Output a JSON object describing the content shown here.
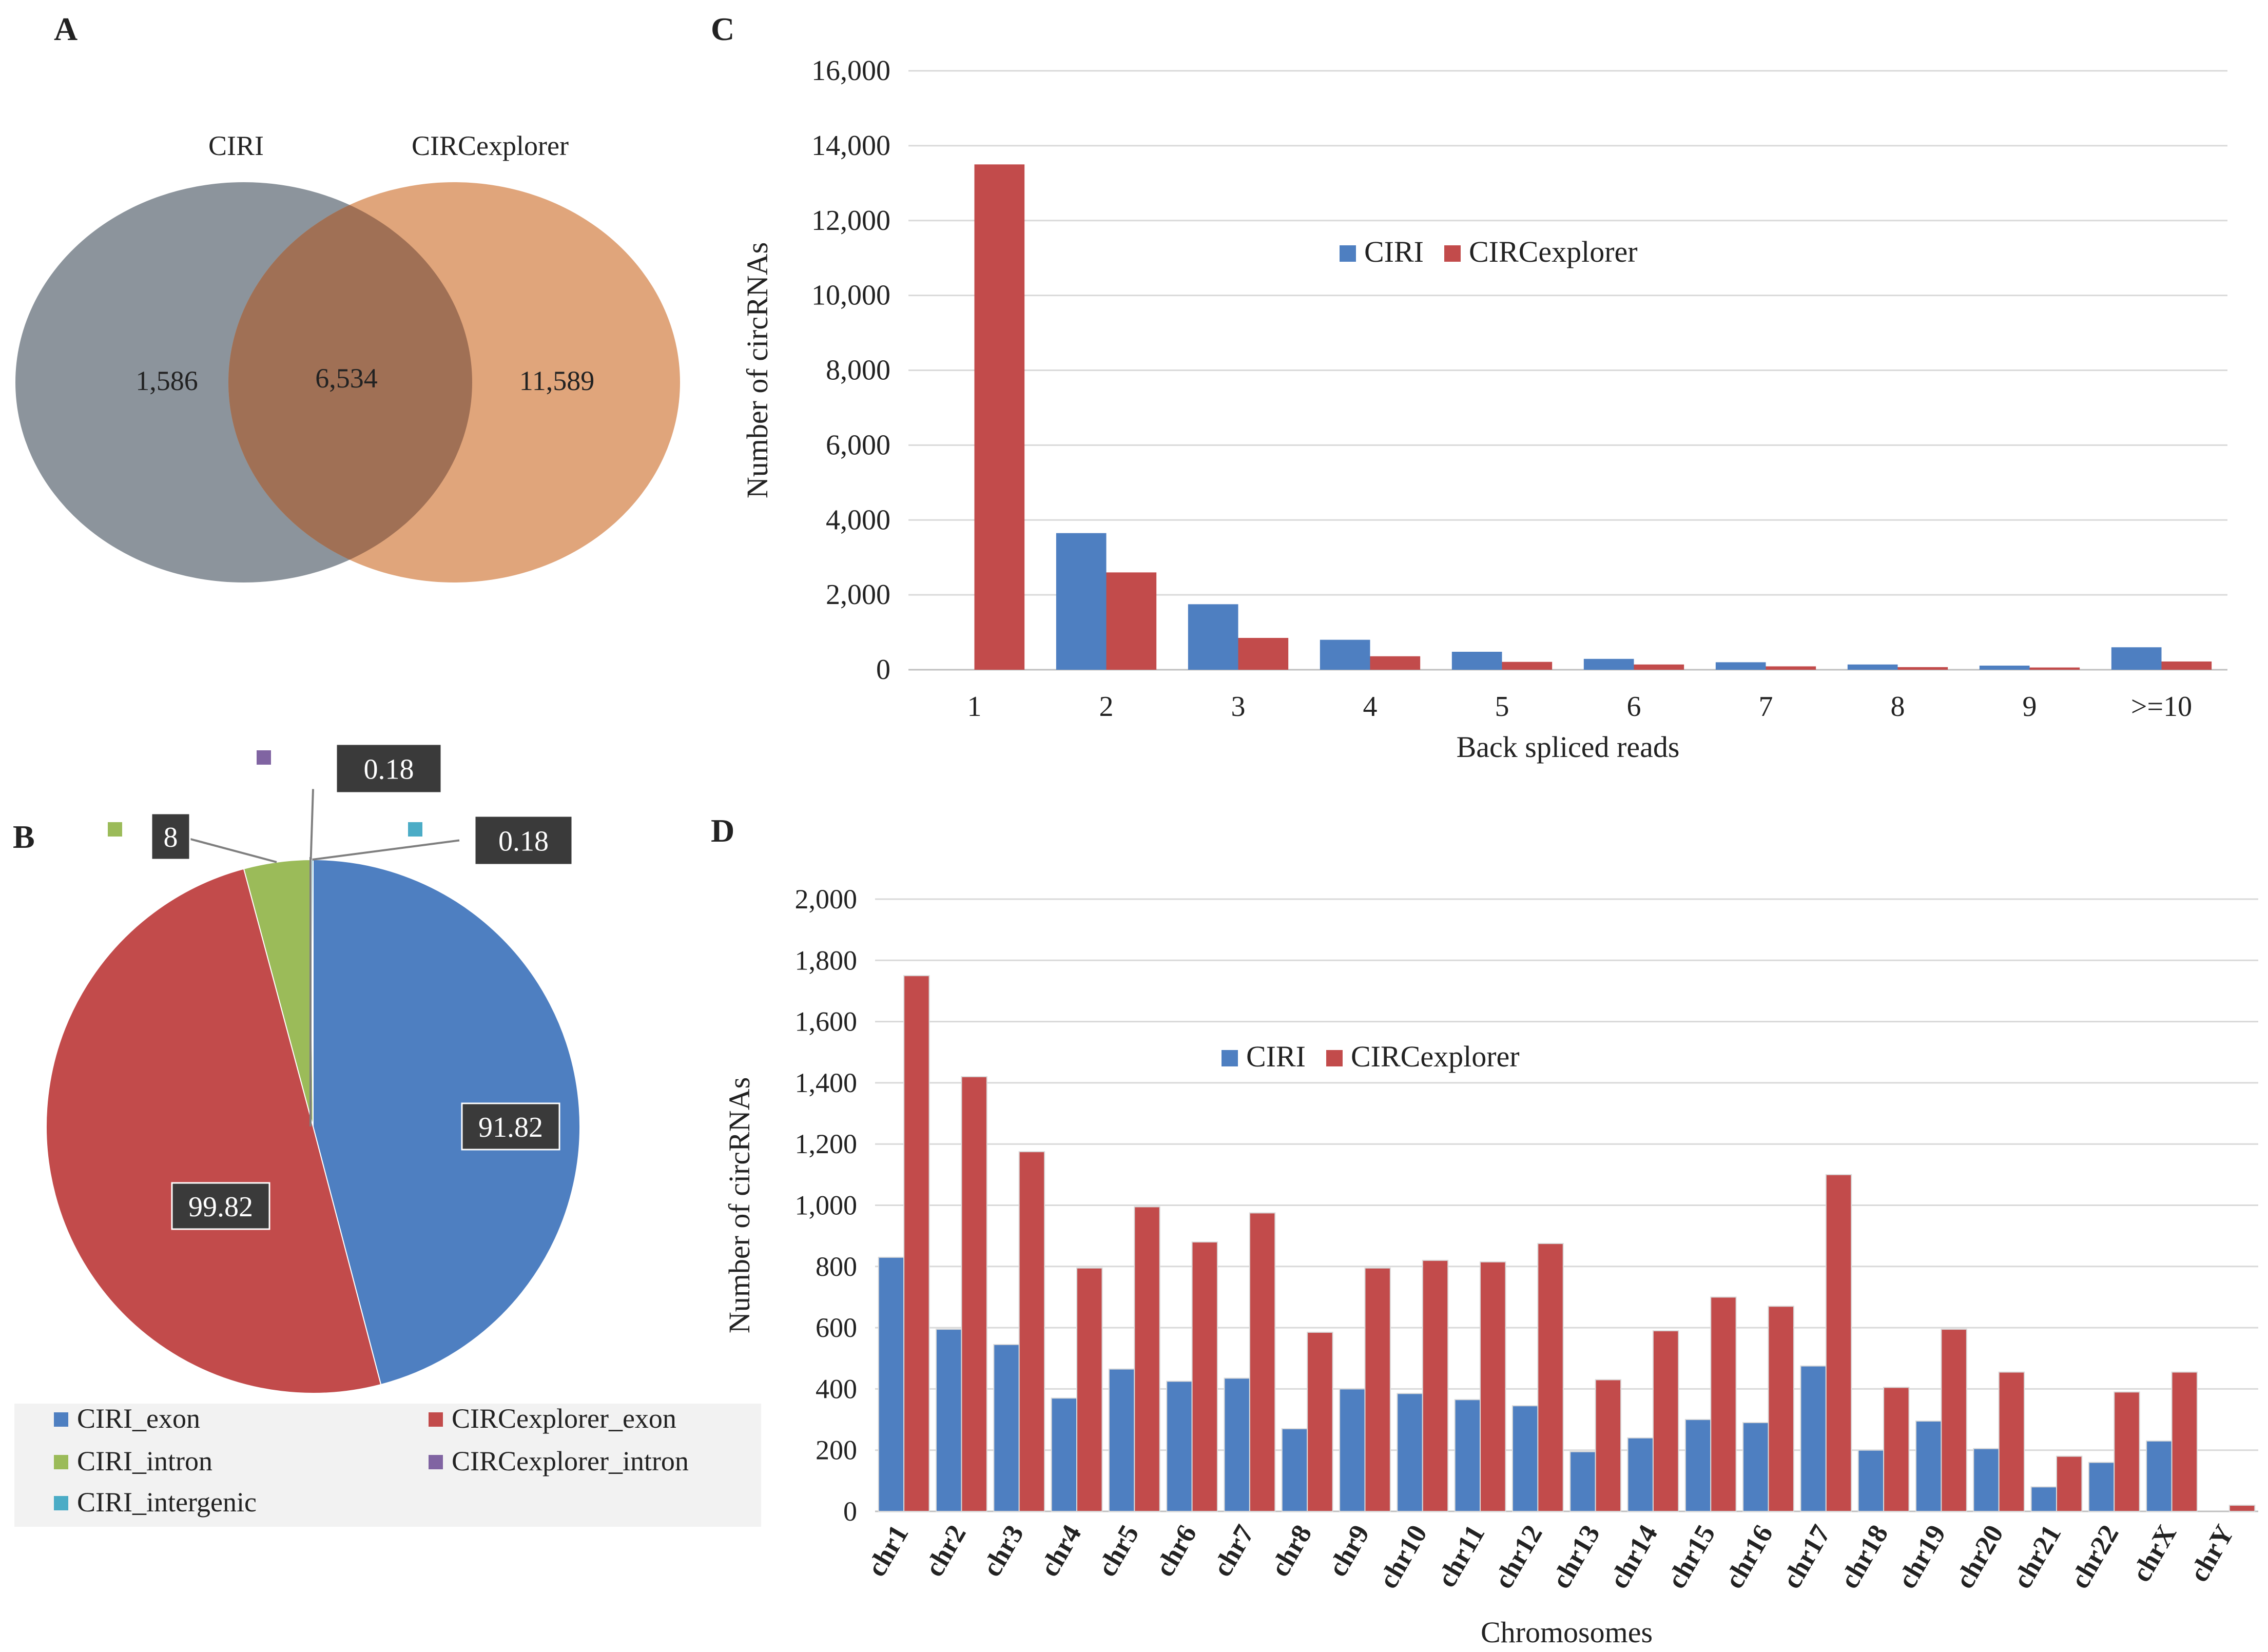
{
  "panels": {
    "a": {
      "letter": "A",
      "set_labels": [
        "CIRI",
        "CIRCexplorer"
      ],
      "values": {
        "left_only": "1,586",
        "both": "6,534",
        "right_only": "11,589"
      },
      "colors": {
        "left": "#8c949c",
        "right": "#e0a57b",
        "overlap": "#a07055"
      }
    },
    "b": {
      "letter": "B"
    },
    "c": {
      "letter": "C"
    },
    "d": {
      "letter": "D"
    }
  },
  "chart_data": [
    {
      "id": "pie",
      "type": "pie",
      "slices": [
        {
          "name": "CIRI_exon",
          "value": 91.82,
          "label": "91.82",
          "color": "#4e7fc1"
        },
        {
          "name": "CIRCexplorer_exon",
          "value": 99.82,
          "label": "99.82",
          "color": "#c24b4b"
        },
        {
          "name": "CIRI_intron",
          "value": 8,
          "label": "8",
          "color": "#9bbb59"
        },
        {
          "name": "CIRCexplorer_intron",
          "value": 0.18,
          "label": "0.18",
          "color": "#8064a2"
        },
        {
          "name": "CIRI_intergenic",
          "value": 0.18,
          "label": "0.18",
          "color": "#4bacc6"
        }
      ],
      "legend": [
        "CIRI_exon",
        "CIRCexplorer_exon",
        "CIRI_intron",
        "CIRCexplorer_intron",
        "CIRI_intergenic"
      ]
    },
    {
      "id": "backspliced",
      "type": "bar",
      "xlabel": "Back spliced reads",
      "ylabel": "Number of circRNAs",
      "ylim": [
        0,
        16000
      ],
      "yticks": [
        "0",
        "2,000",
        "4,000",
        "6,000",
        "8,000",
        "10,000",
        "12,000",
        "14,000",
        "16,000"
      ],
      "categories": [
        "1",
        "2",
        "3",
        "4",
        "5",
        "6",
        "7",
        "8",
        "9",
        ">=10"
      ],
      "series": [
        {
          "name": "CIRI",
          "color": "#4e7fc1",
          "values": [
            0,
            3650,
            1750,
            800,
            480,
            290,
            200,
            140,
            110,
            600
          ]
        },
        {
          "name": "CIRCexplorer",
          "color": "#c24b4b",
          "values": [
            13500,
            2600,
            850,
            360,
            210,
            140,
            90,
            70,
            60,
            220
          ]
        }
      ],
      "legend_position": "top-center"
    },
    {
      "id": "chromosomes",
      "type": "bar",
      "xlabel": "Chromosomes",
      "ylabel": "Number of circRNAs",
      "ylim": [
        0,
        2000
      ],
      "yticks": [
        "0",
        "200",
        "400",
        "600",
        "800",
        "1,000",
        "1,200",
        "1,400",
        "1,600",
        "1,800",
        "2,000"
      ],
      "categories": [
        "chr1",
        "chr2",
        "chr3",
        "chr4",
        "chr5",
        "chr6",
        "chr7",
        "chr8",
        "chr9",
        "chr10",
        "chr11",
        "chr12",
        "chr13",
        "chr14",
        "chr15",
        "chr16",
        "chr17",
        "chr18",
        "chr19",
        "chr20",
        "chr21",
        "chr22",
        "chrX",
        "chrY"
      ],
      "series": [
        {
          "name": "CIRI",
          "color": "#4e7fc1",
          "values": [
            830,
            595,
            545,
            370,
            465,
            425,
            435,
            270,
            400,
            385,
            365,
            345,
            195,
            240,
            300,
            290,
            475,
            200,
            295,
            205,
            80,
            160,
            230,
            0
          ]
        },
        {
          "name": "CIRCexplorer",
          "color": "#c24b4b",
          "values": [
            1750,
            1420,
            1175,
            795,
            995,
            880,
            975,
            585,
            795,
            820,
            815,
            875,
            430,
            590,
            700,
            670,
            1100,
            405,
            595,
            455,
            180,
            390,
            455,
            20
          ]
        }
      ],
      "legend_position": "top-center"
    }
  ]
}
